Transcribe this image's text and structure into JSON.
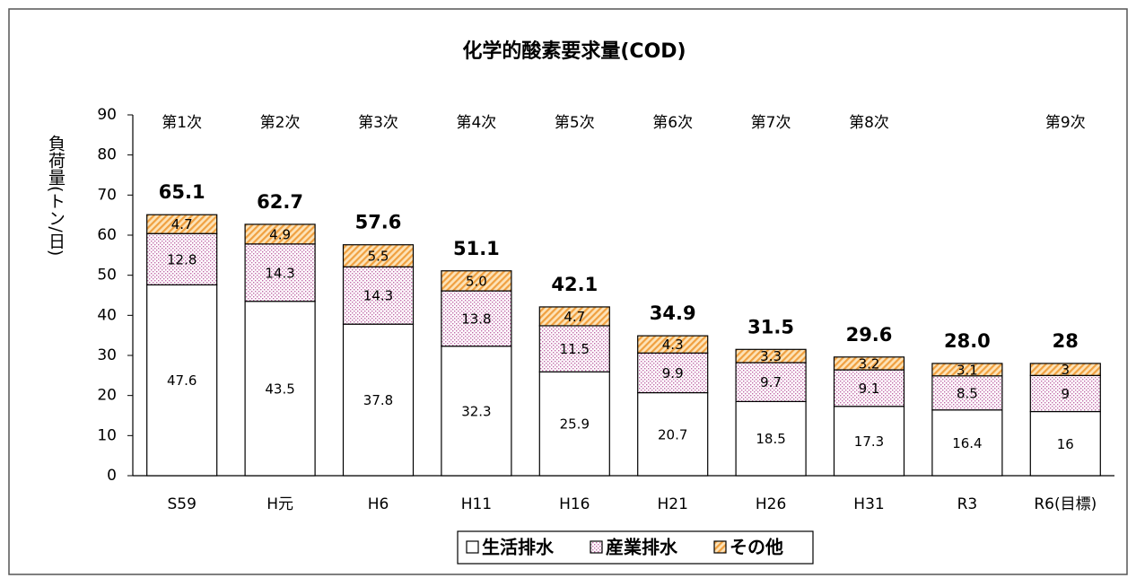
{
  "chart_data": {
    "type": "stacked_bar",
    "title": "化学的酸素要求量(COD)",
    "y_label": "負荷量(トン/日)",
    "categories": [
      "S59",
      "H元",
      "H6",
      "H11",
      "H16",
      "H21",
      "H26",
      "H31",
      "R3",
      "R6(目標)"
    ],
    "phases": [
      "第1次",
      "第2次",
      "第3次",
      "第4次",
      "第5次",
      "第6次",
      "第7次",
      "第8次",
      null,
      "第9次"
    ],
    "series": [
      {
        "name": "生活排水",
        "color": "#ffffff",
        "pattern": "solid",
        "values": [
          47.6,
          43.5,
          37.8,
          32.3,
          25.9,
          20.7,
          18.5,
          17.3,
          16.4,
          16
        ]
      },
      {
        "name": "産業排水",
        "color": "#c06aa8",
        "pattern": "dots",
        "values": [
          12.8,
          14.3,
          14.3,
          13.8,
          11.5,
          9.9,
          9.7,
          9.1,
          8.5,
          9
        ]
      },
      {
        "name": "その他",
        "color": "#f0a040",
        "pattern": "hatch",
        "values": [
          4.7,
          4.9,
          5.5,
          5.0,
          4.7,
          4.3,
          3.3,
          3.2,
          3.1,
          3
        ],
        "value_labels": [
          "4.7",
          "4.9",
          "5.5",
          "5.0",
          "4.7",
          "4.3",
          "3.3",
          "3.2",
          "3.1",
          "3"
        ]
      }
    ],
    "totals": [
      65.1,
      62.7,
      57.6,
      51.1,
      42.1,
      34.9,
      31.5,
      29.6,
      28.0,
      28
    ],
    "total_labels": [
      "65.1",
      "62.7",
      "57.6",
      "51.1",
      "42.1",
      "34.9",
      "31.5",
      "29.6",
      "28.0",
      "28"
    ],
    "ylim": [
      0,
      90
    ],
    "yticks": [
      0,
      10,
      20,
      30,
      40,
      50,
      60,
      70,
      80,
      90
    ],
    "legend": "bottom"
  }
}
